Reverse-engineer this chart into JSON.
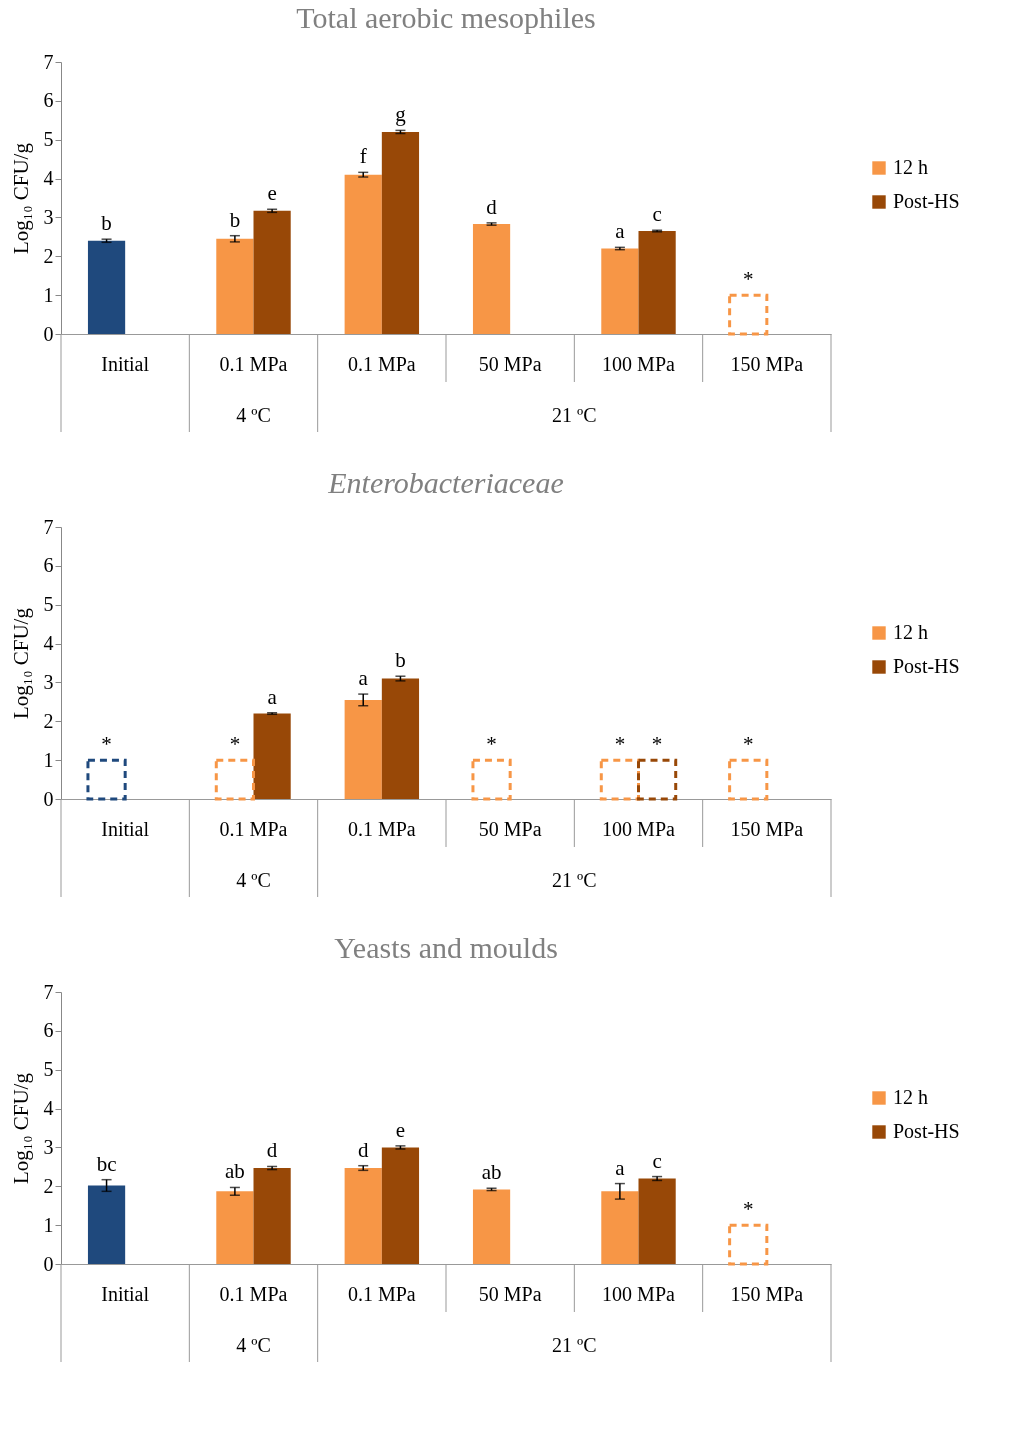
{
  "chart_data": [
    {
      "type": "bar",
      "title": "Total aerobic mesophiles",
      "ylabel": "Log₁₀ CFU/g",
      "categories": [
        "Initial",
        "0.1 MPa",
        "0.1 MPa",
        "50 MPa",
        "100 MPa",
        "150 MPa"
      ],
      "ylim": [
        0,
        7
      ],
      "yticks": [
        0,
        1,
        2,
        3,
        4,
        5,
        6,
        7
      ],
      "legend": "right",
      "annotations": [
        "4 ºC",
        "21 ºC"
      ],
      "series": [
        {
          "name": "12 h",
          "color": "#f79646",
          "colors": [
            "#1f497d",
            "#f79646",
            "#f79646",
            "#f79646",
            "#f79646",
            null
          ],
          "values": [
            2.4,
            2.45,
            4.1,
            2.83,
            2.2,
            null
          ],
          "errors": [
            0.04,
            0.08,
            0.06,
            0.03,
            0.03,
            null
          ],
          "value_labels": [
            "b",
            "b",
            "f",
            "d",
            "a",
            null
          ]
        },
        {
          "name": "Post-HS",
          "color": "#984807",
          "values": [
            null,
            3.17,
            5.2,
            null,
            2.65,
            null
          ],
          "errors": [
            null,
            0.04,
            0.04,
            null,
            0.02,
            null
          ],
          "value_labels": [
            null,
            "e",
            "g",
            null,
            "c",
            null
          ]
        },
        {
          "color": "#f79646",
          "line_style": "dashed",
          "values": [
            null,
            null,
            null,
            null,
            null,
            1
          ],
          "value_labels": [
            null,
            null,
            null,
            null,
            null,
            "*"
          ]
        }
      ]
    },
    {
      "type": "bar",
      "title": "Enterobacteriaceae",
      "ylabel": "Log₁₀ CFU/g",
      "categories": [
        "Initial",
        "0.1 MPa",
        "0.1 MPa",
        "50 MPa",
        "100 MPa",
        "150 MPa"
      ],
      "ylim": [
        0,
        7
      ],
      "yticks": [
        0,
        1,
        2,
        3,
        4,
        5,
        6,
        7
      ],
      "legend": "right",
      "annotations": [
        "4 ºC",
        "21 ºC"
      ],
      "series": [
        {
          "name": "12 h",
          "color": "#f79646",
          "values": [
            null,
            null,
            2.55,
            null,
            null,
            null
          ],
          "errors": [
            null,
            null,
            0.15,
            null,
            null,
            null
          ],
          "value_labels": [
            null,
            null,
            "a",
            null,
            null,
            null
          ]
        },
        {
          "name": "Post-HS",
          "color": "#984807",
          "values": [
            null,
            2.2,
            3.1,
            null,
            null,
            null
          ],
          "errors": [
            null,
            0.02,
            0.06,
            null,
            null,
            null
          ],
          "value_labels": [
            null,
            "a",
            "b",
            null,
            null,
            null
          ]
        },
        {
          "colors": [
            "#1f497d",
            "#f79646",
            null,
            "#f79646",
            "#f79646",
            "#f79646"
          ],
          "line_style": "dashed",
          "values": [
            1,
            1,
            null,
            1,
            1,
            1
          ],
          "value_labels": [
            "*",
            "*",
            null,
            "*",
            "*",
            "*"
          ]
        },
        {
          "color": "#984807",
          "line_style": "dashed",
          "values": [
            null,
            null,
            null,
            null,
            1,
            null
          ],
          "value_labels": [
            null,
            null,
            null,
            null,
            "*",
            null
          ]
        }
      ]
    },
    {
      "type": "bar",
      "title": "Yeasts and moulds",
      "ylabel": "Log₁₀ CFU/g",
      "categories": [
        "Initial",
        "0.1 MPa",
        "0.1 MPa",
        "50 MPa",
        "100 MPa",
        "150 MPa"
      ],
      "ylim": [
        0,
        7
      ],
      "yticks": [
        0,
        1,
        2,
        3,
        4,
        5,
        6,
        7
      ],
      "legend": "right",
      "annotations": [
        "4 ºC",
        "21 ºC"
      ],
      "series": [
        {
          "name": "12 h",
          "color": "#f79646",
          "colors": [
            "#1f497d",
            "#f79646",
            "#f79646",
            "#f79646",
            "#f79646",
            null
          ],
          "values": [
            2.02,
            1.87,
            2.47,
            1.92,
            1.87,
            null
          ],
          "errors": [
            0.15,
            0.1,
            0.06,
            0.03,
            0.2,
            null
          ],
          "value_labels": [
            "bc",
            "ab",
            "d",
            "ab",
            "a",
            null
          ]
        },
        {
          "name": "Post-HS",
          "color": "#984807",
          "values": [
            null,
            2.47,
            3.0,
            null,
            2.2,
            null
          ],
          "errors": [
            null,
            0.04,
            0.04,
            null,
            0.05,
            null
          ],
          "value_labels": [
            null,
            "d",
            "e",
            null,
            "c",
            null
          ]
        },
        {
          "color": "#f79646",
          "line_style": "dashed",
          "values": [
            null,
            null,
            null,
            null,
            null,
            1
          ],
          "value_labels": [
            null,
            null,
            null,
            null,
            null,
            "*"
          ]
        }
      ]
    }
  ]
}
